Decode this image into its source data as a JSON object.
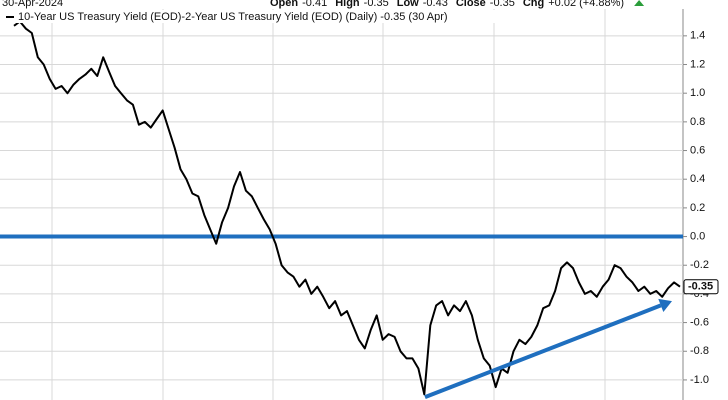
{
  "chart_data": {
    "type": "line",
    "header": {
      "date": "30-Apr-2024",
      "items": [
        {
          "label": "Open",
          "value": "-0.41"
        },
        {
          "label": "High",
          "value": "-0.35"
        },
        {
          "label": "Low",
          "value": "-0.43"
        },
        {
          "label": "Close",
          "value": "-0.35"
        },
        {
          "label": "Chg",
          "value": "+0.02 (+4.88%)"
        }
      ]
    },
    "series": [
      {
        "name": "10-Year US Treasury Yield (EOD)-2-Year US Treasury Yield (EOD) (Daily) -0.35 (30 Apr)",
        "color": "#000000",
        "values": [
          1.47,
          1.5,
          1.45,
          1.42,
          1.25,
          1.2,
          1.1,
          1.03,
          1.05,
          1.0,
          1.06,
          1.1,
          1.13,
          1.17,
          1.12,
          1.25,
          1.15,
          1.05,
          1.0,
          0.95,
          0.92,
          0.78,
          0.8,
          0.76,
          0.82,
          0.88,
          0.75,
          0.62,
          0.47,
          0.4,
          0.3,
          0.28,
          0.15,
          0.05,
          -0.05,
          0.1,
          0.2,
          0.35,
          0.45,
          0.32,
          0.28,
          0.2,
          0.12,
          0.05,
          -0.05,
          -0.2,
          -0.25,
          -0.28,
          -0.35,
          -0.3,
          -0.4,
          -0.35,
          -0.42,
          -0.5,
          -0.45,
          -0.55,
          -0.52,
          -0.62,
          -0.72,
          -0.78,
          -0.65,
          -0.55,
          -0.72,
          -0.68,
          -0.7,
          -0.8,
          -0.85,
          -0.85,
          -0.92,
          -1.1,
          -0.62,
          -0.48,
          -0.45,
          -0.55,
          -0.48,
          -0.52,
          -0.45,
          -0.55,
          -0.72,
          -0.85,
          -0.9,
          -1.05,
          -0.92,
          -0.95,
          -0.8,
          -0.72,
          -0.75,
          -0.7,
          -0.62,
          -0.5,
          -0.48,
          -0.38,
          -0.22,
          -0.18,
          -0.22,
          -0.32,
          -0.4,
          -0.38,
          -0.42,
          -0.35,
          -0.3,
          -0.2,
          -0.22,
          -0.28,
          -0.32,
          -0.38,
          -0.35,
          -0.4,
          -0.38,
          -0.42,
          -0.36,
          -0.32,
          -0.35
        ],
        "last_label": "-0.35"
      }
    ],
    "categories": [
      null,
      null,
      null,
      null,
      null,
      null,
      null,
      null,
      null,
      null,
      null,
      null,
      null,
      null,
      null,
      null,
      null,
      null,
      null,
      null,
      null,
      null,
      null,
      null,
      null,
      null,
      null,
      null,
      null,
      null,
      null,
      null,
      null,
      null,
      null,
      null,
      null,
      null,
      null,
      null,
      null,
      null,
      null,
      null,
      null,
      null,
      null,
      null,
      null,
      null,
      null,
      null,
      null,
      null,
      null,
      null,
      null,
      null,
      null,
      null,
      null,
      null,
      null,
      null,
      null,
      null,
      null,
      null,
      null,
      null,
      null,
      null,
      null,
      null,
      null,
      null,
      null,
      null,
      null,
      null,
      null,
      null,
      null,
      null,
      null,
      null,
      null,
      null,
      null,
      null,
      null,
      null,
      null,
      null,
      null,
      null,
      null,
      null,
      null,
      null,
      null,
      null,
      null,
      null,
      null,
      null,
      null,
      null,
      null,
      null,
      null,
      null,
      null
    ],
    "ylim": [
      -1.14,
      1.65
    ],
    "yticks": [
      {
        "value": 1.4,
        "label": "1.4"
      },
      1.2,
      {
        "value": 1,
        "label": "1.0"
      },
      0.8,
      0.6,
      0.4,
      0.2,
      {
        "value": 0,
        "label": "0.0"
      },
      -0.2,
      -0.4,
      -0.6,
      -0.8,
      {
        "value": -1,
        "label": "-1.0"
      }
    ],
    "hline": {
      "value": 0,
      "color": "#1f6fbf"
    },
    "trend_arrow": {
      "start": -1.12,
      "end": -0.45,
      "color": "#1f6fbf"
    },
    "grid": true
  }
}
